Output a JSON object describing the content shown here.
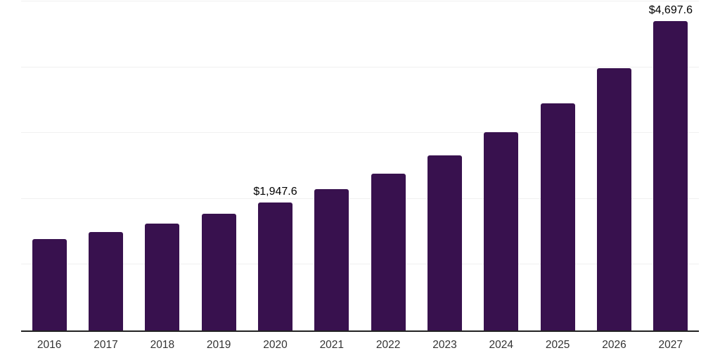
{
  "chart_data": {
    "type": "bar",
    "title": "",
    "xlabel": "",
    "ylabel": "",
    "categories": [
      "2016",
      "2017",
      "2018",
      "2019",
      "2020",
      "2021",
      "2022",
      "2023",
      "2024",
      "2025",
      "2026",
      "2027"
    ],
    "values": [
      1388,
      1500,
      1628,
      1778,
      1947.6,
      2150,
      2378,
      2660,
      3015,
      3448,
      3990,
      4697.6
    ],
    "labeled_points": [
      {
        "category": "2020",
        "label": "$1,947.6"
      },
      {
        "category": "2027",
        "label": "$4,697.6"
      }
    ],
    "ylim": [
      0,
      5000
    ],
    "gridline_step": 1000,
    "grid": true,
    "legend": "none",
    "y_tick_labels_visible": false,
    "colors": {
      "bar": "#38114e",
      "gridline": "#f0f0f0",
      "axis_line": "#222222",
      "tick_label": "#333333",
      "data_label": "#000000",
      "background": "#ffffff"
    }
  }
}
